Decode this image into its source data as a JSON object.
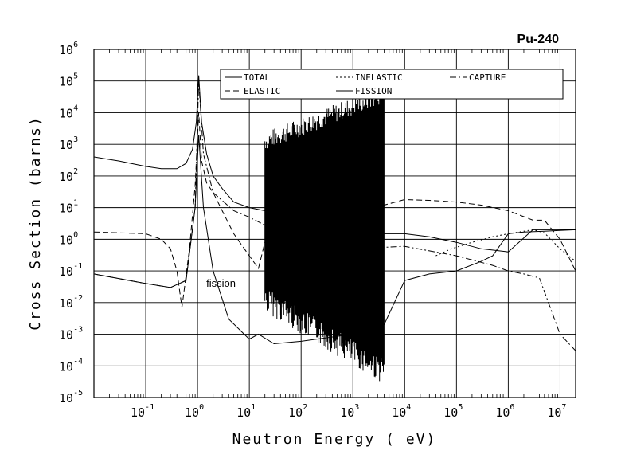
{
  "chart_data": {
    "type": "line",
    "title": "Pu-240",
    "xlabel": "Neutron Energy ( eV)",
    "ylabel": "Cross Section (barns)",
    "x_scale": "log",
    "y_scale": "log",
    "xlim": [
      0.01,
      20000000
    ],
    "ylim": [
      1e-05,
      1000000
    ],
    "grid": true,
    "legend_placement": "top-right",
    "x_ticks": [
      {
        "base": "10",
        "exp": "-1",
        "value": 0.1
      },
      {
        "base": "10",
        "exp": "0",
        "value": 1
      },
      {
        "base": "10",
        "exp": "1",
        "value": 10
      },
      {
        "base": "10",
        "exp": "2",
        "value": 100
      },
      {
        "base": "10",
        "exp": "3",
        "value": 1000
      },
      {
        "base": "10",
        "exp": "4",
        "value": 10000
      },
      {
        "base": "10",
        "exp": "5",
        "value": 100000
      },
      {
        "base": "10",
        "exp": "6",
        "value": 1000000
      },
      {
        "base": "10",
        "exp": "7",
        "value": 10000000
      }
    ],
    "y_ticks": [
      {
        "base": "10",
        "exp": "6",
        "value": 1000000
      },
      {
        "base": "10",
        "exp": "5",
        "value": 100000
      },
      {
        "base": "10",
        "exp": "4",
        "value": 10000
      },
      {
        "base": "10",
        "exp": "3",
        "value": 1000
      },
      {
        "base": "10",
        "exp": "2",
        "value": 100
      },
      {
        "base": "10",
        "exp": "1",
        "value": 10
      },
      {
        "base": "10",
        "exp": "0",
        "value": 1
      },
      {
        "base": "10",
        "exp": "-1",
        "value": 0.1
      },
      {
        "base": "10",
        "exp": "-2",
        "value": 0.01
      },
      {
        "base": "10",
        "exp": "-3",
        "value": 0.001
      },
      {
        "base": "10",
        "exp": "-4",
        "value": 0.0001
      },
      {
        "base": "10",
        "exp": "-5",
        "value": 1e-05
      }
    ],
    "annotations": [
      {
        "text": "fission",
        "x": 0.9,
        "y": 0.05
      }
    ],
    "series": [
      {
        "name": "TOTAL",
        "style": "solid",
        "x": [
          0.01,
          0.03,
          0.1,
          0.2,
          0.4,
          0.6,
          0.8,
          0.95,
          1.056,
          1.2,
          1.5,
          2,
          3,
          5,
          10,
          20,
          30,
          100,
          300,
          1000,
          4000,
          10000,
          30000,
          100000,
          300000,
          1000000,
          3000000,
          10000000,
          20000000
        ],
        "y": [
          400,
          300,
          200,
          170,
          170,
          250,
          700,
          5000,
          150000,
          5000,
          500,
          100,
          40,
          15,
          10,
          8,
          7,
          4,
          2,
          1.5,
          1.5,
          1.5,
          1.2,
          0.8,
          0.5,
          0.4,
          2,
          2,
          2
        ]
      },
      {
        "name": "ELASTIC",
        "style": "dashed",
        "x": [
          0.01,
          0.1,
          0.2,
          0.3,
          0.4,
          0.5,
          0.7,
          0.9,
          1.056,
          1.2,
          1.5,
          2,
          3,
          5,
          10,
          15,
          20,
          50,
          100,
          300,
          1000,
          4000,
          10000,
          30000,
          100000,
          300000,
          1000000,
          3000000,
          5000000,
          10000000,
          20000000
        ],
        "y": [
          1.7,
          1.5,
          1.0,
          0.5,
          0.1,
          0.007,
          0.5,
          50,
          10000,
          300,
          60,
          30,
          8,
          1.5,
          0.3,
          0.12,
          0.8,
          5,
          8,
          10,
          10,
          12,
          18,
          17,
          15,
          12,
          8,
          4,
          4,
          1,
          0.1
        ]
      },
      {
        "name": "INELASTIC",
        "style": "dotted",
        "x": [
          40000,
          80000,
          200000,
          500000,
          1000000,
          3000000,
          5000000,
          10000000,
          20000000
        ],
        "y": [
          0.3,
          0.5,
          0.8,
          1.2,
          1.5,
          2,
          1.6,
          0.5,
          0.2
        ]
      },
      {
        "name": "CAPTURE",
        "style": "dashdot",
        "x": [
          0.01,
          0.1,
          0.3,
          0.6,
          0.9,
          1.056,
          1.3,
          2,
          5,
          10,
          30,
          100,
          1000,
          10000,
          100000,
          500000,
          1000000,
          2000000,
          4000000,
          10000000,
          20000000
        ],
        "y": [
          0.08,
          0.04,
          0.03,
          0.05,
          10,
          100000,
          500,
          30,
          8,
          5,
          2,
          1,
          0.5,
          0.6,
          0.3,
          0.15,
          0.1,
          0.08,
          0.06,
          0.001,
          0.0003
        ]
      },
      {
        "name": "FISSION",
        "style": "solid",
        "x": [
          0.01,
          0.1,
          0.3,
          0.6,
          0.9,
          1.056,
          1.3,
          2,
          4,
          10,
          15,
          30,
          100,
          1000,
          4000,
          10000,
          30000,
          100000,
          300000,
          500000,
          1000000,
          2000000,
          5000000,
          10000000,
          20000000
        ],
        "y": [
          0.08,
          0.04,
          0.03,
          0.05,
          10,
          2000,
          10,
          0.1,
          0.003,
          0.0007,
          0.001,
          0.0005,
          0.0006,
          0.001,
          0.002,
          0.05,
          0.08,
          0.1,
          0.2,
          0.3,
          1.5,
          1.7,
          1.8,
          1.9,
          2
        ]
      }
    ],
    "resonance_region": {
      "x_start": 20,
      "x_end": 4000
    }
  }
}
